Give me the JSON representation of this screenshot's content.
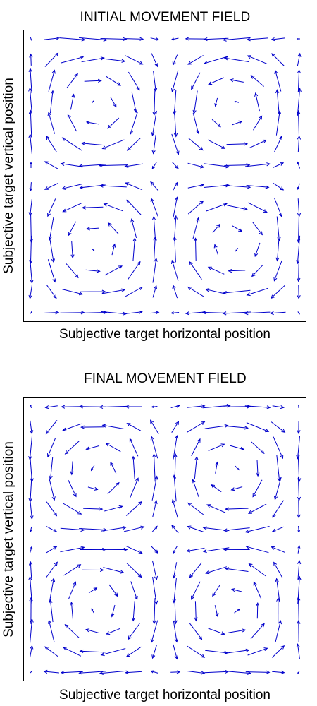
{
  "chart_data": [
    {
      "type": "quiver",
      "title": "INITIAL MOVEMENT FIELD",
      "xlabel": "Subjective target horizontal position",
      "ylabel": "Subjective target vertical position",
      "arrow_color": "#0000cc",
      "grid": false,
      "legend": "none",
      "ticks": "none",
      "field": "four rotational cells: counter-clockwise lower-left and upper-right, clockwise upper-left and lower-right"
    },
    {
      "type": "quiver",
      "title": "FINAL MOVEMENT FIELD",
      "xlabel": "Subjective target horizontal position",
      "ylabel": "Subjective target vertical position",
      "arrow_color": "#0000cc",
      "grid": false,
      "legend": "none",
      "ticks": "none",
      "field": "four rotational cells: clockwise lower-left and upper-right, counter-clockwise upper-left and lower-right"
    }
  ]
}
